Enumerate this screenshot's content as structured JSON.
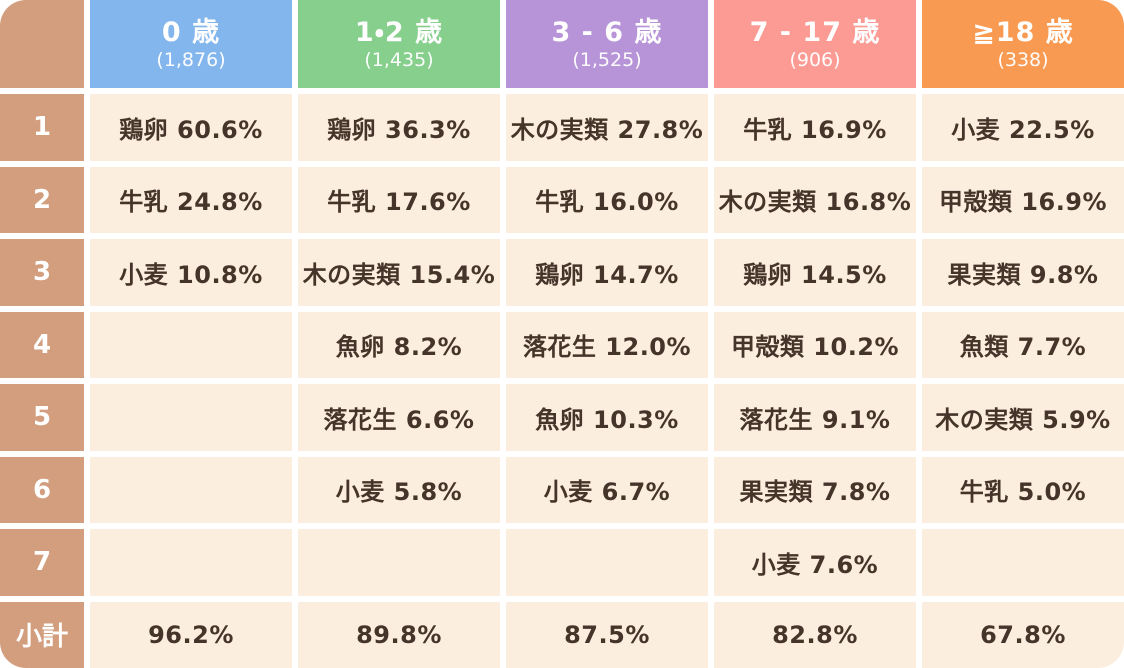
{
  "table": {
    "corner_label": "",
    "columns": [
      {
        "label": "0 歳",
        "count": "(1,876)",
        "color": "#84B6EE"
      },
      {
        "label": "1・2 歳",
        "count": "(1,435)",
        "color": "#86CF8C"
      },
      {
        "label": "3 - 6 歳",
        "count": "(1,525)",
        "color": "#B794D8"
      },
      {
        "label": "7 - 17 歳",
        "count": "(906)",
        "color": "#FC9A94"
      },
      {
        "label": "≧18 歳",
        "count": "(338)",
        "color": "#F89A51"
      }
    ],
    "rows": [
      {
        "label": "1",
        "cells": [
          "鶏卵 60.6%",
          "鶏卵 36.3%",
          "木の実類 27.8%",
          "牛乳 16.9%",
          "小麦 22.5%"
        ]
      },
      {
        "label": "2",
        "cells": [
          "牛乳 24.8%",
          "牛乳 17.6%",
          "牛乳 16.0%",
          "木の実類 16.8%",
          "甲殻類 16.9%"
        ]
      },
      {
        "label": "3",
        "cells": [
          "小麦 10.8%",
          "木の実類 15.4%",
          "鶏卵 14.7%",
          "鶏卵 14.5%",
          "果実類 9.8%"
        ]
      },
      {
        "label": "4",
        "cells": [
          "",
          "魚卵 8.2%",
          "落花生 12.0%",
          "甲殻類 10.2%",
          "魚類 7.7%"
        ]
      },
      {
        "label": "5",
        "cells": [
          "",
          "落花生 6.6%",
          "魚卵 10.3%",
          "落花生 9.1%",
          "木の実類 5.9%"
        ]
      },
      {
        "label": "6",
        "cells": [
          "",
          "小麦 5.8%",
          "小麦 6.7%",
          "果実類 7.8%",
          "牛乳 5.0%"
        ]
      },
      {
        "label": "7",
        "cells": [
          "",
          "",
          "",
          "小麦 7.6%",
          ""
        ]
      },
      {
        "label": "小計",
        "cells": [
          "96.2%",
          "89.8%",
          "87.5%",
          "82.8%",
          "67.8%"
        ]
      }
    ],
    "palette": {
      "row_label_bg": "#D29E7E",
      "cell_bg": "#FCEEDF",
      "cell_text": "#45342A",
      "header_text": "#FFFFFF",
      "gap": "#FFFFFF"
    }
  },
  "chart_data": {
    "type": "table",
    "row_headers": [
      "1",
      "2",
      "3",
      "4",
      "5",
      "6",
      "7",
      "小計"
    ],
    "columns": [
      {
        "age_group": "0 歳",
        "n": 1876,
        "ranking": [
          [
            "鶏卵",
            60.6
          ],
          [
            "牛乳",
            24.8
          ],
          [
            "小麦",
            10.8
          ]
        ],
        "subtotal_pct": 96.2
      },
      {
        "age_group": "1・2 歳",
        "n": 1435,
        "ranking": [
          [
            "鶏卵",
            36.3
          ],
          [
            "牛乳",
            17.6
          ],
          [
            "木の実類",
            15.4
          ],
          [
            "魚卵",
            8.2
          ],
          [
            "落花生",
            6.6
          ],
          [
            "小麦",
            5.8
          ]
        ],
        "subtotal_pct": 89.8
      },
      {
        "age_group": "3 - 6 歳",
        "n": 1525,
        "ranking": [
          [
            "木の実類",
            27.8
          ],
          [
            "牛乳",
            16.0
          ],
          [
            "鶏卵",
            14.7
          ],
          [
            "落花生",
            12.0
          ],
          [
            "魚卵",
            10.3
          ],
          [
            "小麦",
            6.7
          ]
        ],
        "subtotal_pct": 87.5
      },
      {
        "age_group": "7 - 17 歳",
        "n": 906,
        "ranking": [
          [
            "牛乳",
            16.9
          ],
          [
            "木の実類",
            16.8
          ],
          [
            "鶏卵",
            14.5
          ],
          [
            "甲殻類",
            10.2
          ],
          [
            "落花生",
            9.1
          ],
          [
            "果実類",
            7.8
          ],
          [
            "小麦",
            7.6
          ]
        ],
        "subtotal_pct": 82.8
      },
      {
        "age_group": "≧18 歳",
        "n": 338,
        "ranking": [
          [
            "小麦",
            22.5
          ],
          [
            "甲殻類",
            16.9
          ],
          [
            "果実類",
            9.8
          ],
          [
            "魚類",
            7.7
          ],
          [
            "木の実類",
            5.9
          ],
          [
            "牛乳",
            5.0
          ]
        ],
        "subtotal_pct": 67.8
      }
    ]
  }
}
